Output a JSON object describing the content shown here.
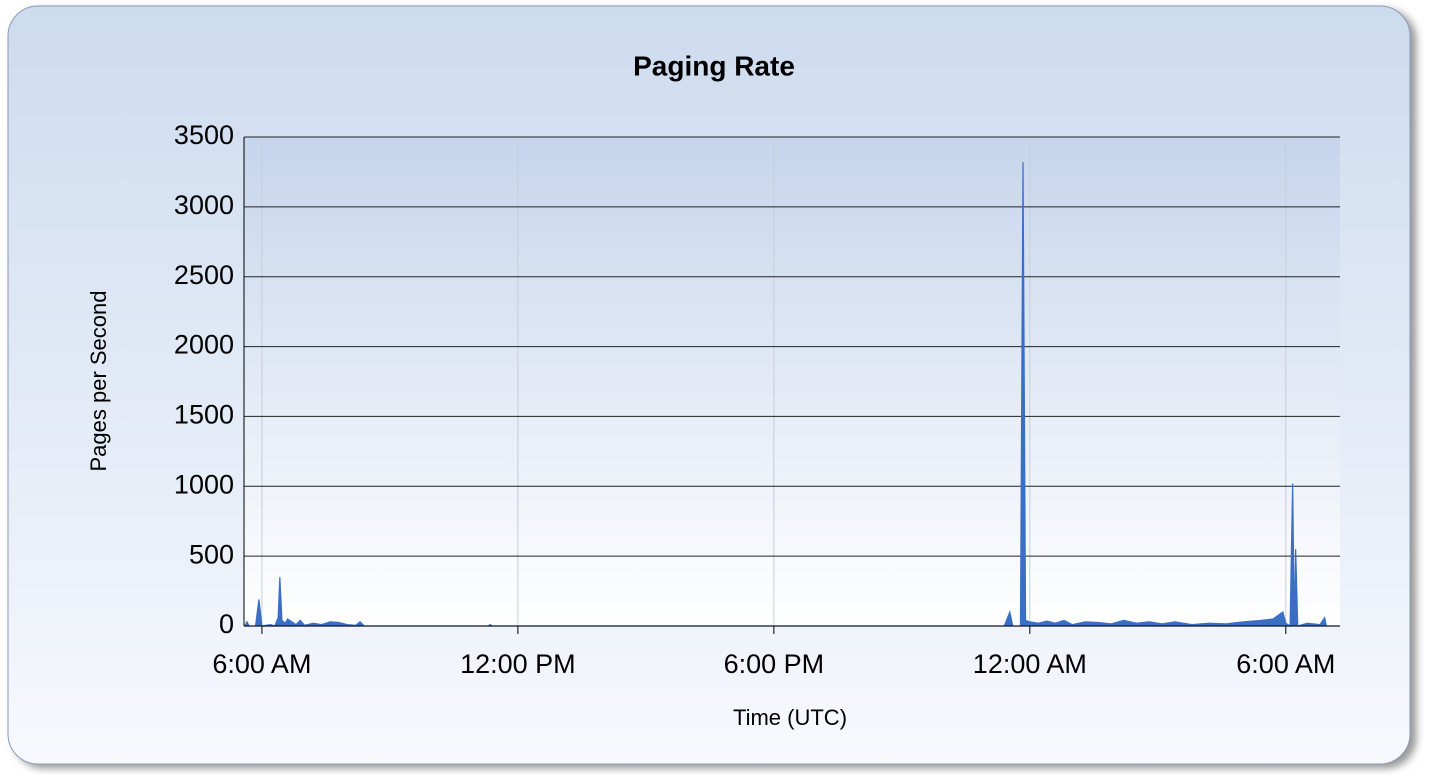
{
  "chart_data": {
    "type": "area",
    "title": "Paging Rate",
    "xlabel": "Time (UTC)",
    "ylabel": "Pages per Second",
    "color": "#3a6fc4",
    "x": [
      5.6,
      5.65,
      5.7,
      5.85,
      5.93,
      6.0,
      6.2,
      6.3,
      6.38,
      6.42,
      6.47,
      6.55,
      6.6,
      6.7,
      6.8,
      6.9,
      7.0,
      7.2,
      7.4,
      7.6,
      7.8,
      8.0,
      8.2,
      8.3,
      8.4,
      11.3,
      11.35,
      11.4,
      23.4,
      23.53,
      23.6,
      23.78,
      23.84,
      23.9,
      24.0,
      24.2,
      24.4,
      24.6,
      24.8,
      25.0,
      25.3,
      25.6,
      25.9,
      26.2,
      26.5,
      26.8,
      27.1,
      27.4,
      27.8,
      28.2,
      28.6,
      29.0,
      29.4,
      29.7,
      29.93,
      30.0,
      30.1,
      30.16,
      30.2,
      30.23,
      30.28,
      30.5,
      30.8,
      30.91,
      30.95,
      31.27
    ],
    "values": [
      0,
      30,
      0,
      0,
      190,
      0,
      10,
      0,
      60,
      350,
      40,
      20,
      50,
      30,
      10,
      40,
      5,
      20,
      10,
      30,
      25,
      10,
      5,
      30,
      0,
      0,
      10,
      0,
      0,
      100,
      0,
      0,
      3320,
      40,
      30,
      20,
      35,
      20,
      40,
      10,
      30,
      25,
      15,
      40,
      20,
      30,
      15,
      30,
      10,
      20,
      15,
      30,
      40,
      50,
      100,
      20,
      0,
      1020,
      0,
      550,
      0,
      20,
      10,
      60,
      0,
      0
    ],
    "xlim": [
      5.58,
      31.27
    ],
    "xticks": [
      {
        "value": 6,
        "label": "6:00 AM"
      },
      {
        "value": 12,
        "label": "12:00 PM"
      },
      {
        "value": 18,
        "label": "6:00 PM"
      },
      {
        "value": 24,
        "label": "12:00 AM"
      },
      {
        "value": 30,
        "label": "6:00 AM"
      }
    ],
    "ylim": [
      0,
      3500
    ],
    "yticks": [
      0,
      500,
      1000,
      1500,
      2000,
      2500,
      3000,
      3500
    ],
    "grid": true
  }
}
